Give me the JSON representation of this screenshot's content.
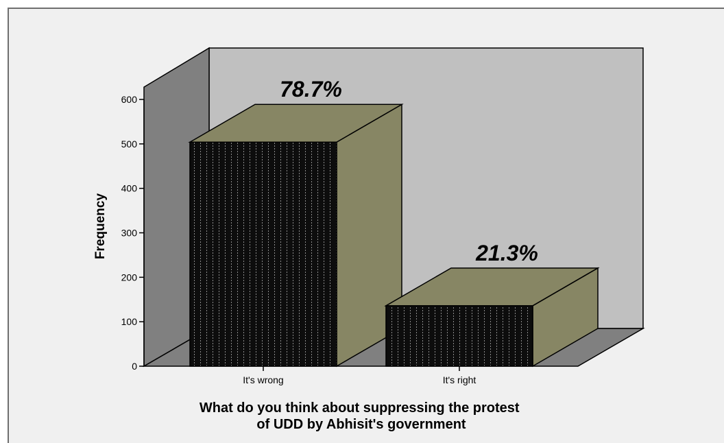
{
  "chart_data": {
    "type": "bar",
    "categories": [
      "It's wrong",
      "It's right"
    ],
    "values": [
      504,
      136
    ],
    "data_labels": [
      "78.7%",
      "21.3%"
    ],
    "title": "",
    "xlabel": "What do you think about suppressing the protest of UDD by Abhisit's government",
    "xlabel_lines": [
      "What do you think about suppressing the protest",
      "of UDD by Abhisit's government"
    ],
    "ylabel": "Frequency",
    "ylim": [
      0,
      600
    ],
    "yticks": [
      0,
      100,
      200,
      300,
      400,
      500,
      600
    ],
    "grid": false,
    "legend": "none",
    "three_d": true
  },
  "colors": {
    "bar_front": "#0d0d0d",
    "bar_pattern": "#8c8c8c",
    "bar_side": "#878664",
    "back_wall": "#c0c0c0",
    "side_wall": "#808080",
    "floor": "#808080",
    "background": "#f0f0f0"
  }
}
